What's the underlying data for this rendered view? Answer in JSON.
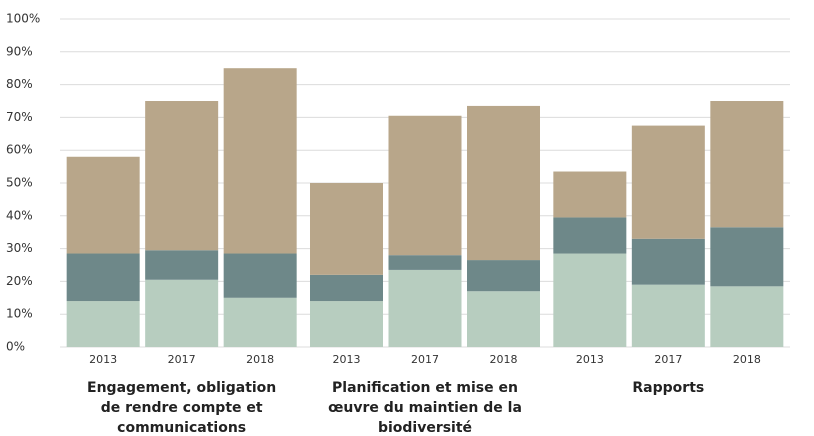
{
  "chart_data": {
    "type": "stacked-bar",
    "groups": [
      "Engagement, obligation de rendre compte et communications",
      "Planification et mise en œuvre du maintien de la biodiversité",
      "Rapports"
    ],
    "categories": [
      "2013",
      "2017",
      "2018",
      "2013",
      "2017",
      "2018",
      "2013",
      "2017",
      "2018"
    ],
    "series": [
      {
        "color": "#b7cdbf",
        "values": [
          14,
          20.5,
          15,
          14,
          23.5,
          17,
          28.5,
          19,
          18.5
        ]
      },
      {
        "color": "#6e8889",
        "values": [
          14.5,
          9,
          13.5,
          8,
          4.5,
          9.5,
          11,
          14,
          18
        ]
      },
      {
        "color": "#b8a68a",
        "values": [
          29.5,
          45.5,
          56.5,
          28,
          42.5,
          47,
          14,
          34.5,
          38.5
        ]
      }
    ],
    "ylim": [
      0,
      100
    ],
    "yticks": [
      {
        "value": 0,
        "label": "0%"
      },
      {
        "value": 10,
        "label": "10%"
      },
      {
        "value": 20,
        "label": "20%"
      },
      {
        "value": 30,
        "label": "30%"
      },
      {
        "value": 40,
        "label": "40%"
      },
      {
        "value": 50,
        "label": "50%"
      },
      {
        "value": 60,
        "label": "60%"
      },
      {
        "value": 70,
        "label": "70%"
      },
      {
        "value": 80,
        "label": "80%"
      },
      {
        "value": 90,
        "label": "90%"
      },
      {
        "value": 100,
        "label": "100%"
      }
    ],
    "grid": true
  }
}
